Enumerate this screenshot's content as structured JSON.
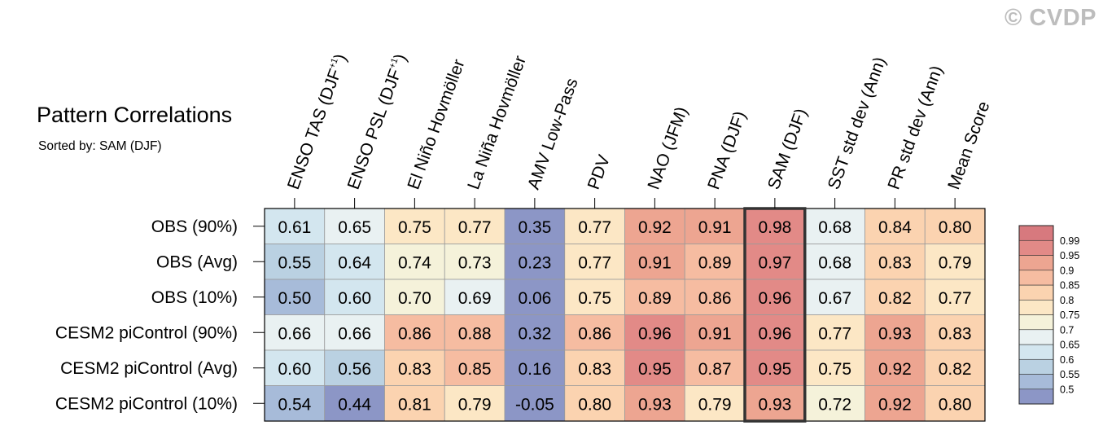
{
  "watermark": "© CVDP",
  "chart_data": {
    "type": "heatmap",
    "title": "Pattern Correlations",
    "subtitle": "Sorted by: SAM (DJF)",
    "columns": [
      "ENSO TAS (DJF+1)",
      "ENSO PSL (DJF+1)",
      "El Niño Hovmöller",
      "La Niña Hovmöller",
      "AMV Low-Pass",
      "PDV",
      "NAO (JFM)",
      "PNA (DJF)",
      "SAM (DJF)",
      "SST std dev (Ann)",
      "PR std dev (Ann)",
      "Mean Score"
    ],
    "column_labels": [
      {
        "text": "ENSO TAS (DJF",
        "sup": "+1",
        "tail": ")"
      },
      {
        "text": "ENSO PSL (DJF",
        "sup": "+1",
        "tail": ")"
      },
      {
        "text": "El Niño Hovmöller"
      },
      {
        "text": "La Niña Hovmöller"
      },
      {
        "text": "AMV Low-Pass"
      },
      {
        "text": "PDV"
      },
      {
        "text": "NAO (JFM)"
      },
      {
        "text": "PNA (DJF)"
      },
      {
        "text": "SAM (DJF)"
      },
      {
        "text": "SST std dev (Ann)"
      },
      {
        "text": "PR std dev (Ann)"
      },
      {
        "text": "Mean Score"
      }
    ],
    "rows": [
      "OBS (90%)",
      "OBS (Avg)",
      "OBS (10%)",
      "CESM2 piControl (90%)",
      "CESM2 piControl (Avg)",
      "CESM2 piControl (10%)"
    ],
    "values": [
      [
        0.61,
        0.65,
        0.75,
        0.77,
        0.35,
        0.77,
        0.92,
        0.91,
        0.98,
        0.68,
        0.84,
        0.8
      ],
      [
        0.55,
        0.64,
        0.74,
        0.73,
        0.23,
        0.77,
        0.91,
        0.89,
        0.97,
        0.68,
        0.83,
        0.79
      ],
      [
        0.5,
        0.6,
        0.7,
        0.69,
        0.06,
        0.75,
        0.89,
        0.86,
        0.96,
        0.67,
        0.82,
        0.77
      ],
      [
        0.66,
        0.66,
        0.86,
        0.88,
        0.32,
        0.86,
        0.96,
        0.91,
        0.96,
        0.77,
        0.93,
        0.83
      ],
      [
        0.6,
        0.56,
        0.83,
        0.85,
        0.16,
        0.83,
        0.95,
        0.87,
        0.95,
        0.75,
        0.92,
        0.82
      ],
      [
        0.54,
        0.44,
        0.81,
        0.79,
        -0.05,
        0.8,
        0.93,
        0.79,
        0.93,
        0.72,
        0.92,
        0.8
      ]
    ],
    "highlight_column": "SAM (DJF)",
    "colorbar": {
      "levels": [
        0.5,
        0.55,
        0.6,
        0.65,
        0.7,
        0.75,
        0.8,
        0.85,
        0.9,
        0.95,
        0.99
      ],
      "tick_labels": [
        "0.5",
        "0.55",
        "0.6",
        "0.65",
        "0.7",
        "0.75",
        "0.8",
        "0.85",
        "0.9",
        "0.95",
        "0.99"
      ],
      "colors": [
        "#8c96c6",
        "#a7bbd9",
        "#bad1e2",
        "#d3e6ef",
        "#e9f1f2",
        "#f5f2da",
        "#fce7c5",
        "#fbd3b0",
        "#f6bca1",
        "#eda591",
        "#e28a87",
        "#d7797e"
      ]
    }
  }
}
